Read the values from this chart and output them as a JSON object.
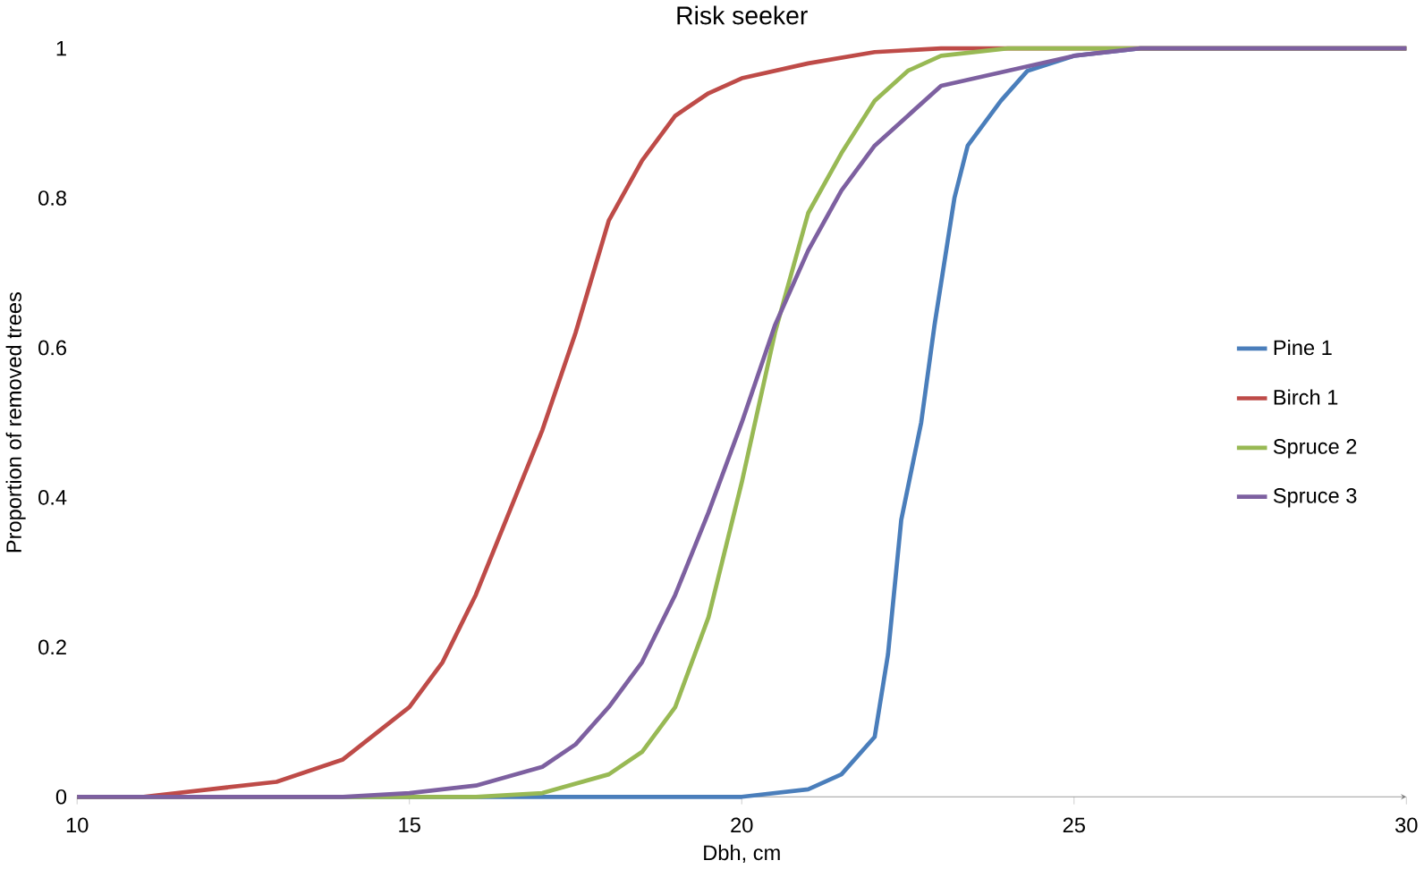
{
  "chart_data": {
    "type": "line",
    "title": "Risk seeker",
    "xlabel": "Dbh, cm",
    "ylabel": "Proportion of removed trees",
    "xlim": [
      10,
      30
    ],
    "xticks": [
      10,
      15,
      20,
      25,
      30
    ],
    "ylim": [
      0,
      1
    ],
    "yticks": [
      0,
      0.2,
      0.4,
      0.6,
      0.8,
      1
    ],
    "grid": false,
    "legend": "right",
    "marker": "none",
    "line_style": "solid",
    "series": [
      {
        "name": "Pine 1",
        "color": "#4a7ebb",
        "x": [
          10,
          15,
          20,
          21,
          21.5,
          22,
          22.2,
          22.4,
          22.7,
          22.9,
          23.2,
          23.4,
          23.9,
          24.3,
          25,
          26,
          30
        ],
        "values": [
          0,
          0,
          0,
          0.01,
          0.03,
          0.08,
          0.19,
          0.37,
          0.5,
          0.63,
          0.8,
          0.87,
          0.93,
          0.97,
          0.99,
          1,
          1
        ]
      },
      {
        "name": "Birch 1",
        "color": "#be4b48",
        "x": [
          10,
          11,
          12,
          13,
          14,
          15,
          15.5,
          16,
          16.5,
          17,
          17.5,
          18,
          18.5,
          19,
          19.5,
          20,
          21,
          22,
          23,
          30
        ],
        "values": [
          0,
          0,
          0.01,
          0.02,
          0.05,
          0.12,
          0.18,
          0.27,
          0.38,
          0.49,
          0.62,
          0.77,
          0.85,
          0.91,
          0.94,
          0.96,
          0.98,
          0.995,
          1,
          1
        ]
      },
      {
        "name": "Spruce 2",
        "color": "#98b954",
        "x": [
          10,
          16,
          17,
          18,
          18.5,
          19,
          19.5,
          20,
          20.5,
          21,
          21.5,
          22,
          22.5,
          23,
          24,
          30
        ],
        "values": [
          0,
          0,
          0.005,
          0.03,
          0.06,
          0.12,
          0.24,
          0.42,
          0.62,
          0.78,
          0.86,
          0.93,
          0.97,
          0.99,
          1,
          1
        ]
      },
      {
        "name": "Spruce 3",
        "color": "#7d60a0",
        "x": [
          10,
          14,
          15,
          16,
          17,
          17.5,
          18,
          18.5,
          19,
          19.5,
          20,
          20.5,
          21,
          21.5,
          22,
          22.5,
          23,
          24,
          25,
          26,
          30
        ],
        "values": [
          0,
          0,
          0.005,
          0.015,
          0.04,
          0.07,
          0.12,
          0.18,
          0.27,
          0.38,
          0.5,
          0.63,
          0.73,
          0.81,
          0.87,
          0.91,
          0.95,
          0.97,
          0.99,
          1,
          1
        ]
      }
    ]
  }
}
